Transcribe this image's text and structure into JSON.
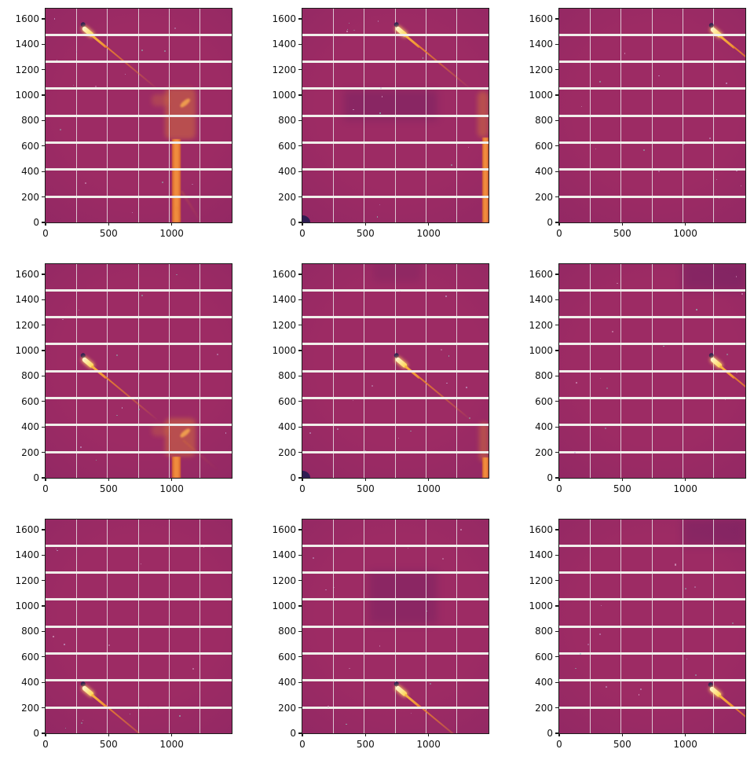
{
  "figure": {
    "kind": "matplotlib-multipanel-figure",
    "rows": 3,
    "cols": 3,
    "background": "#ffffff"
  },
  "colors": {
    "figure_bg": "#ffffff",
    "detector_base": "#9d2b64",
    "detector_vignette": "rgba(58,16,94,0.10)",
    "module_gap": "#f1eeea",
    "chip_gap": "rgba(233,224,228,0.85)",
    "streak_core_start": "#fff7d2",
    "streak_core_end": "#ffd44e",
    "streak_mid_start": "#f9b83f",
    "streak_mid_end": "#ef8c33",
    "streak_tail_start": "#e8802f",
    "streak_tail_end": "rgba(196,82,42,0)",
    "streak_glow": "rgba(255,205,95,0.85)",
    "head_dot": "#271e50",
    "corner_dot": "#221a50",
    "beam_column_edge": "#d9662c",
    "beam_column_mid": "#f5923c",
    "beam_diffuse": "#d97a36",
    "beam_pin": "#f7a94e",
    "beam_ray": "#e07a30",
    "shade": "#3d1460",
    "tick_label_color": "#111111",
    "spine_color": "#1c1c1c"
  },
  "chart_data": {
    "type": "heatmap",
    "title": "",
    "subtitle": "",
    "description": "3x3 grid of X-ray detector frames (magma-style colormap). Each frame shows a bright diagonal diffraction streak; streak head moves right across columns (x = 285, 737, 1190) and down across rows (y = 1538, 948, 368). Panels in the upper-left 2x2 block also show an orange beamstop/nozzle shadow column near x = 1000 (cols 1) or clipped at the right edge (col 2). White horizontal module gaps and faint vertical chip gaps cross every frame.",
    "grid": {
      "rows": 3,
      "cols": 3
    },
    "axes": {
      "xlim": [
        0,
        1475
      ],
      "ylim": [
        0,
        1680
      ],
      "xticks": [
        0,
        500,
        1000
      ],
      "yticks": [
        0,
        200,
        400,
        600,
        800,
        1000,
        1200,
        1400,
        1600
      ],
      "xlabel": "",
      "ylabel": "",
      "grid_on": false,
      "module_gap_rows": [
        203,
        415,
        627,
        839,
        1051,
        1263,
        1475
      ],
      "chip_gap_cols": [
        245,
        490,
        735,
        980,
        1225
      ]
    },
    "panels": [
      {
        "row": 0,
        "col": 0,
        "spot": {
          "x": 285,
          "y": 1538
        },
        "artifact": {
          "column": [
            1000,
            0,
            1072,
            655
          ],
          "diffuse": [
            945,
            655,
            1190,
            1055
          ],
          "pin": {
            "cx": 1105,
            "cy": 940,
            "w": 95,
            "h": 34,
            "angle": -40
          },
          "arm": [
            840,
            915,
            980,
            1005
          ],
          "rays": [
            [
              1075,
              255,
              1235,
              0
            ],
            [
              1042,
              130,
              1082,
              0
            ]
          ]
        },
        "corner_dot": false,
        "shades": []
      },
      {
        "row": 0,
        "col": 1,
        "spot": {
          "x": 737,
          "y": 1538
        },
        "artifact": {
          "column": [
            1424,
            0,
            1475,
            670
          ],
          "diffuse": [
            1386,
            670,
            1475,
            1030
          ],
          "pin": null,
          "arm": null,
          "rays": []
        },
        "corner_dot": true,
        "shades": [
          [
            330,
            800,
            1070,
            1040,
            0.2
          ]
        ]
      },
      {
        "row": 0,
        "col": 2,
        "spot": {
          "x": 1195,
          "y": 1533
        },
        "artifact": null,
        "corner_dot": false,
        "shades": []
      },
      {
        "row": 1,
        "col": 0,
        "spot": {
          "x": 285,
          "y": 948
        },
        "artifact": {
          "column": [
            1000,
            0,
            1072,
            165
          ],
          "diffuse": [
            945,
            165,
            1190,
            470
          ],
          "pin": {
            "cx": 1105,
            "cy": 355,
            "w": 95,
            "h": 34,
            "angle": -40
          },
          "arm": [
            840,
            330,
            980,
            420
          ],
          "rays": [
            [
              1090,
              300,
              1370,
              60
            ]
          ]
        },
        "corner_dot": false,
        "shades": []
      },
      {
        "row": 1,
        "col": 1,
        "spot": {
          "x": 737,
          "y": 948
        },
        "artifact": {
          "column": [
            1424,
            0,
            1475,
            160
          ],
          "diffuse": [
            1398,
            130,
            1475,
            440
          ],
          "pin": null,
          "arm": null,
          "rays": []
        },
        "corner_dot": true,
        "shades": [
          [
            560,
            1540,
            940,
            1685,
            0.12
          ]
        ]
      },
      {
        "row": 1,
        "col": 2,
        "spot": {
          "x": 1195,
          "y": 945
        },
        "artifact": null,
        "corner_dot": false,
        "shades": [
          [
            980,
            1470,
            1475,
            1685,
            0.22
          ]
        ]
      },
      {
        "row": 2,
        "col": 0,
        "spot": {
          "x": 285,
          "y": 368
        },
        "artifact": null,
        "corner_dot": false,
        "shades": []
      },
      {
        "row": 2,
        "col": 1,
        "spot": {
          "x": 737,
          "y": 368
        },
        "artifact": null,
        "corner_dot": false,
        "shades": [
          [
            530,
            860,
            1070,
            1280,
            0.18
          ]
        ]
      },
      {
        "row": 2,
        "col": 2,
        "spot": {
          "x": 1190,
          "y": 365
        },
        "artifact": null,
        "corner_dot": false,
        "shades": [
          [
            980,
            1470,
            1475,
            1685,
            0.2
          ]
        ]
      }
    ]
  }
}
